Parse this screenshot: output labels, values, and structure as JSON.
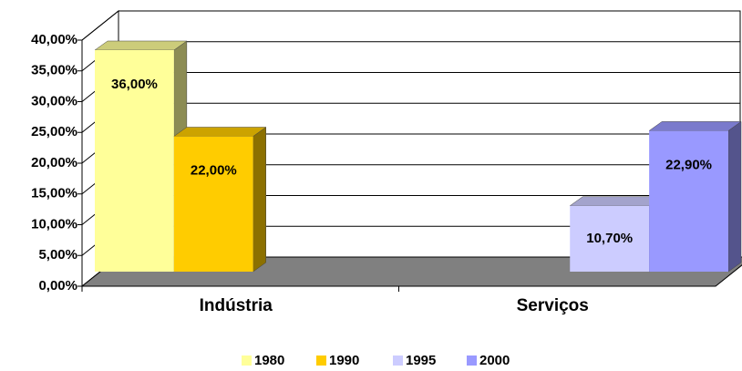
{
  "chart_data": {
    "type": "bar3d",
    "categories": [
      "Indústria",
      "Serviços"
    ],
    "series": [
      {
        "name": "1980",
        "color": "#ffff99",
        "values": [
          36,
          null
        ],
        "value_labels": [
          "36,00%",
          null
        ]
      },
      {
        "name": "1990",
        "color": "#ffcc00",
        "values": [
          22,
          null
        ],
        "value_labels": [
          "22,00%",
          null
        ]
      },
      {
        "name": "1995",
        "color": "#ccccff",
        "values": [
          null,
          10.7
        ],
        "value_labels": [
          null,
          "10,70%"
        ]
      },
      {
        "name": "2000",
        "color": "#9999ff",
        "values": [
          null,
          22.9
        ],
        "value_labels": [
          null,
          "22,90%"
        ]
      }
    ],
    "ylim": [
      0,
      40
    ],
    "yticks": [
      {
        "value": 0,
        "label": "0,00%"
      },
      {
        "value": 5,
        "label": "5,00%"
      },
      {
        "value": 10,
        "label": "10,00%"
      },
      {
        "value": 15,
        "label": "15,00%"
      },
      {
        "value": 20,
        "label": "20,00%"
      },
      {
        "value": 25,
        "label": "25,00%"
      },
      {
        "value": 30,
        "label": "30,00%"
      },
      {
        "value": 35,
        "label": "35,00%"
      },
      {
        "value": 40,
        "label": "40,00%"
      }
    ],
    "grid": true,
    "legend": "bottom"
  }
}
